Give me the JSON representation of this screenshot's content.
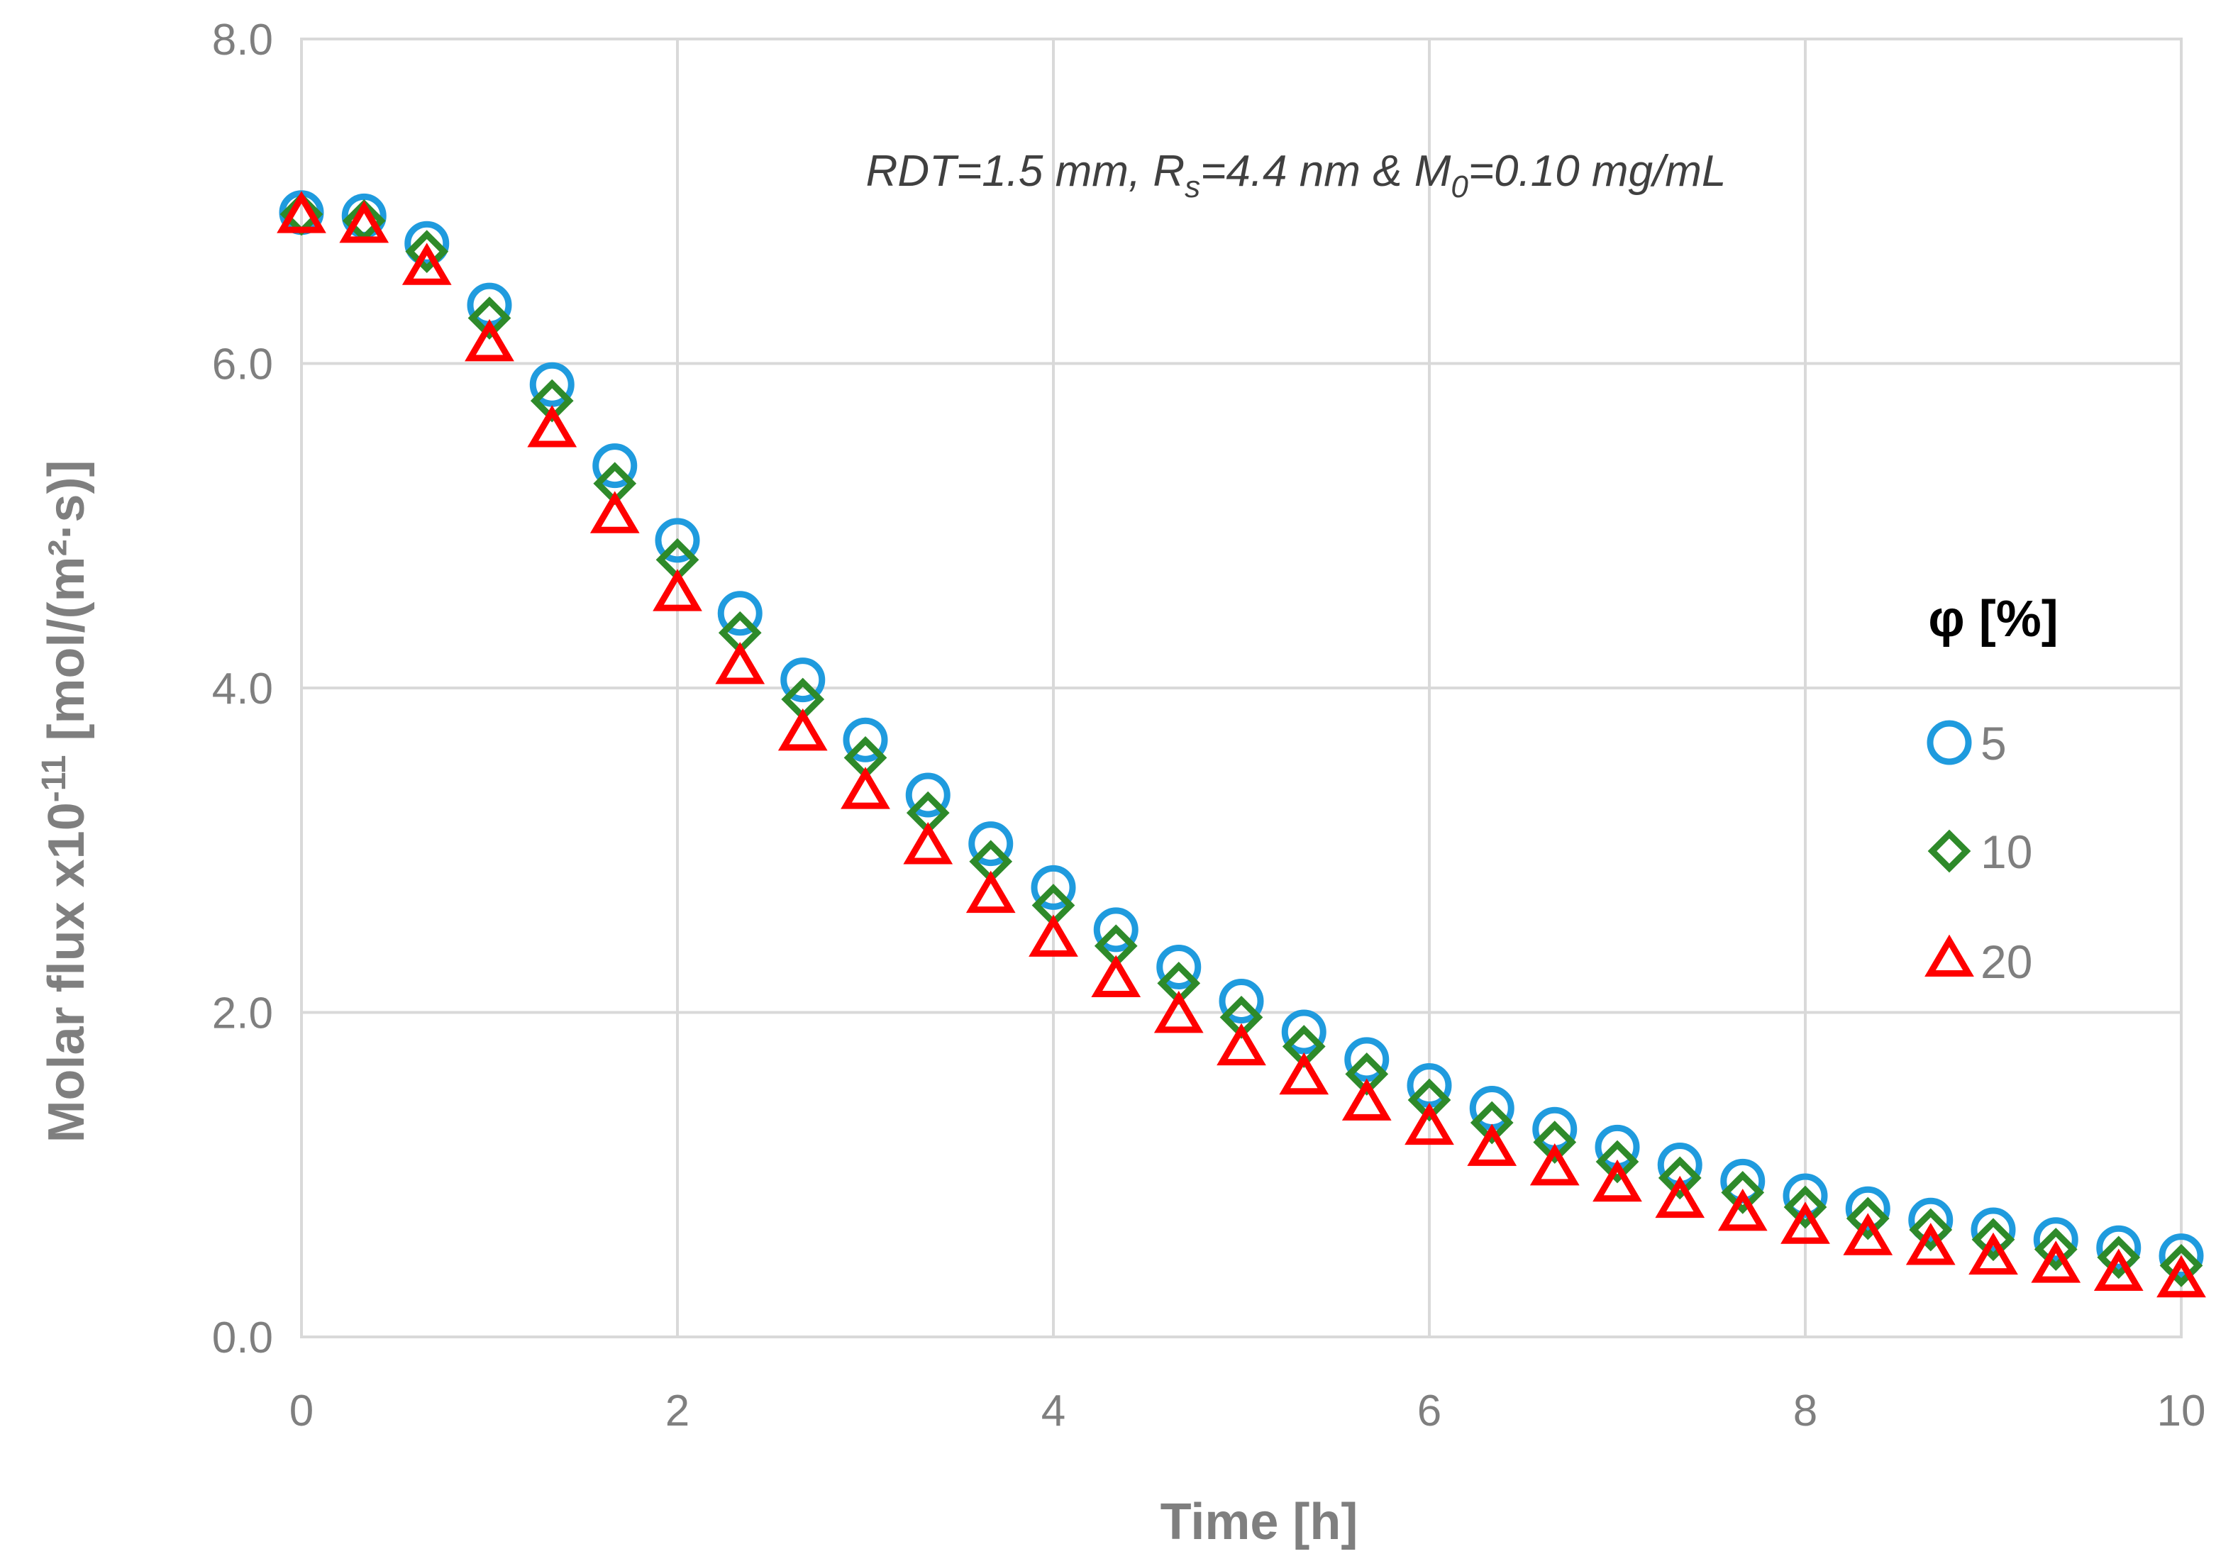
{
  "chart_data": {
    "type": "scatter",
    "xlabel": "Time [h]",
    "ylabel": {
      "prefix": "Molar flux x10",
      "exponent": "-11",
      "suffix": " [mol/(m²·s)]"
    },
    "xlim": [
      0,
      10
    ],
    "ylim": [
      0,
      8
    ],
    "x_ticks": [
      "0",
      "2",
      "4",
      "6",
      "8",
      "10"
    ],
    "y_ticks": [
      "0.0",
      "2.0",
      "4.0",
      "6.0",
      "8.0"
    ],
    "grid": true,
    "annotation": {
      "p1": "RDT=1.5 mm, R",
      "sub1": "s",
      "p2": "=4.4 nm & M",
      "sub2": "0",
      "p3": "=0.10 mg/mL"
    },
    "legend": {
      "title": "φ [%]",
      "placement": "right"
    },
    "x": [
      0,
      0.333,
      0.667,
      1,
      1.333,
      1.667,
      2,
      2.333,
      2.667,
      3,
      3.333,
      3.667,
      4,
      4.333,
      4.667,
      5,
      5.333,
      5.667,
      6,
      6.333,
      6.667,
      7,
      7.333,
      7.667,
      8,
      8.333,
      8.667,
      9,
      9.333,
      9.667,
      10
    ],
    "series": [
      {
        "name": "5",
        "marker": "circle",
        "color": "#1f9bde",
        "values": [
          6.93,
          6.91,
          6.74,
          6.36,
          5.87,
          5.37,
          4.91,
          4.46,
          4.05,
          3.68,
          3.34,
          3.04,
          2.77,
          2.51,
          2.28,
          2.07,
          1.88,
          1.71,
          1.55,
          1.41,
          1.28,
          1.17,
          1.06,
          0.96,
          0.87,
          0.79,
          0.72,
          0.66,
          0.6,
          0.55,
          0.5
        ]
      },
      {
        "name": "10",
        "marker": "diamond",
        "color": "#2e8a2a",
        "values": [
          6.92,
          6.88,
          6.69,
          6.28,
          5.77,
          5.26,
          4.79,
          4.34,
          3.93,
          3.57,
          3.23,
          2.93,
          2.66,
          2.41,
          2.18,
          1.97,
          1.79,
          1.62,
          1.46,
          1.32,
          1.2,
          1.08,
          0.98,
          0.89,
          0.8,
          0.73,
          0.66,
          0.6,
          0.54,
          0.49,
          0.44
        ]
      },
      {
        "name": "20",
        "marker": "triangle",
        "color": "#ff0000",
        "values": [
          6.9,
          6.84,
          6.58,
          6.11,
          5.58,
          5.05,
          4.57,
          4.12,
          3.71,
          3.35,
          3.01,
          2.71,
          2.44,
          2.19,
          1.97,
          1.77,
          1.59,
          1.43,
          1.28,
          1.15,
          1.03,
          0.93,
          0.83,
          0.75,
          0.67,
          0.6,
          0.54,
          0.48,
          0.43,
          0.38,
          0.34
        ]
      }
    ]
  }
}
